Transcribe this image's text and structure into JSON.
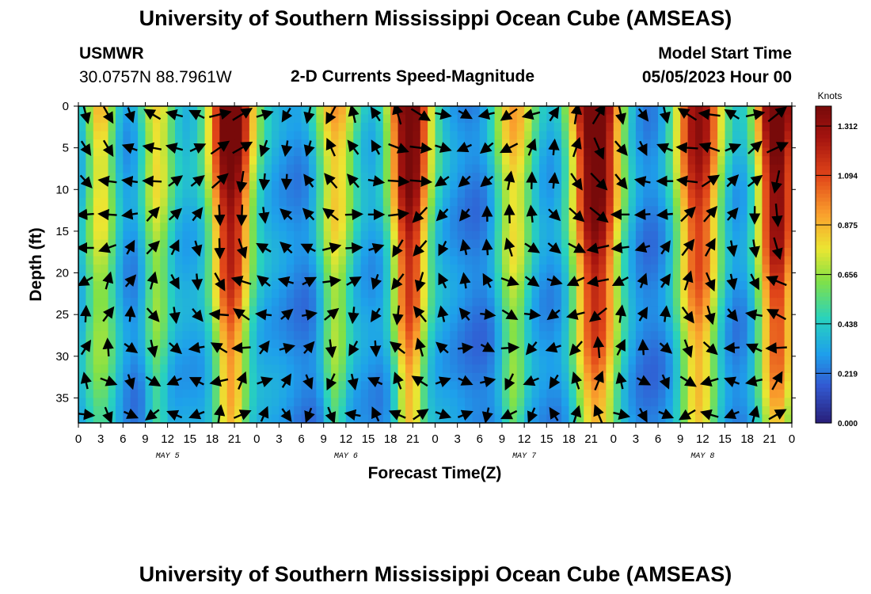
{
  "page": {
    "title": "University of Southern Mississippi Ocean Cube (AMSEAS)",
    "footer_title": "University of Southern Mississippi Ocean Cube (AMSEAS)",
    "station_name": "USMWR",
    "station_coords": "30.0757N  88.7961W",
    "model_start_label": "Model Start Time",
    "model_start_value": "05/05/2023 Hour 00"
  },
  "chart_data": {
    "type": "heatmap",
    "title": "2-D Currents Speed-Magnitude",
    "xlabel": "Forecast Time(Z)",
    "ylabel": "Depth (ft)",
    "x_range_hours": [
      0,
      96
    ],
    "y_range_ft": [
      0,
      38
    ],
    "x_tick_labels": [
      "0",
      "3",
      "6",
      "9",
      "12",
      "15",
      "18",
      "21",
      "0",
      "3",
      "6",
      "9",
      "12",
      "15",
      "18",
      "21",
      "0",
      "3",
      "6",
      "9",
      "12",
      "15",
      "18",
      "21",
      "0",
      "3",
      "6",
      "9",
      "12",
      "15",
      "18",
      "21",
      "0"
    ],
    "y_tick_labels": [
      "0",
      "5",
      "10",
      "15",
      "20",
      "25",
      "30",
      "35"
    ],
    "y_tick_values": [
      0,
      5,
      10,
      15,
      20,
      25,
      30,
      35
    ],
    "date_labels": [
      {
        "text": "MAY 5",
        "hour": 12
      },
      {
        "text": "MAY 6",
        "hour": 36
      },
      {
        "text": "MAY 7",
        "hour": 60
      },
      {
        "text": "MAY 8",
        "hour": 84
      }
    ],
    "colorbar": {
      "unit": "Knots",
      "min": 0.0,
      "max": 1.4,
      "tick_labels": [
        "0.000",
        "0.219",
        "0.438",
        "0.656",
        "0.875",
        "1.094",
        "1.312"
      ],
      "tick_values": [
        0.0,
        0.219,
        0.438,
        0.656,
        0.875,
        1.094,
        1.312
      ]
    },
    "speed_peaks": [
      {
        "center_hour": 20.5,
        "peak_knots": 1.35,
        "surface_halfwidth_h": 3.2,
        "bottom_halfwidth_h": 2.2
      },
      {
        "center_hour": 44.5,
        "peak_knots": 1.32,
        "surface_halfwidth_h": 3.0,
        "bottom_halfwidth_h": 2.0
      },
      {
        "center_hour": 69.5,
        "peak_knots": 1.35,
        "surface_halfwidth_h": 3.5,
        "bottom_halfwidth_h": 3.0
      },
      {
        "center_hour": 83.5,
        "peak_knots": 1.05,
        "surface_halfwidth_h": 3.5,
        "bottom_halfwidth_h": 2.5
      },
      {
        "center_hour": 94.0,
        "peak_knots": 1.25,
        "surface_halfwidth_h": 3.0,
        "bottom_halfwidth_h": 2.5
      },
      {
        "center_hour": 10.5,
        "peak_knots": 0.6,
        "surface_halfwidth_h": 2.5,
        "bottom_halfwidth_h": 1.5
      },
      {
        "center_hour": 34.5,
        "peak_knots": 0.65,
        "surface_halfwidth_h": 3.0,
        "bottom_halfwidth_h": 1.5
      },
      {
        "center_hour": 58.5,
        "peak_knots": 0.6,
        "surface_halfwidth_h": 3.0,
        "bottom_halfwidth_h": 1.5
      },
      {
        "center_hour": 3.0,
        "peak_knots": 0.55,
        "surface_halfwidth_h": 2.0,
        "bottom_halfwidth_h": 2.5
      }
    ],
    "vector_grid": {
      "hours": [
        1,
        4,
        7,
        10,
        13,
        16,
        19,
        22,
        25,
        28,
        31,
        34,
        37,
        40,
        43,
        46,
        49,
        52,
        55,
        58,
        61,
        64,
        67,
        70,
        73,
        76,
        79,
        82,
        85,
        88,
        91,
        94
      ],
      "depths_ft": [
        1,
        5,
        9,
        13,
        17,
        21,
        25,
        29,
        33,
        37
      ],
      "direction_note": "current direction vectors; rotate with tidal phase"
    }
  }
}
